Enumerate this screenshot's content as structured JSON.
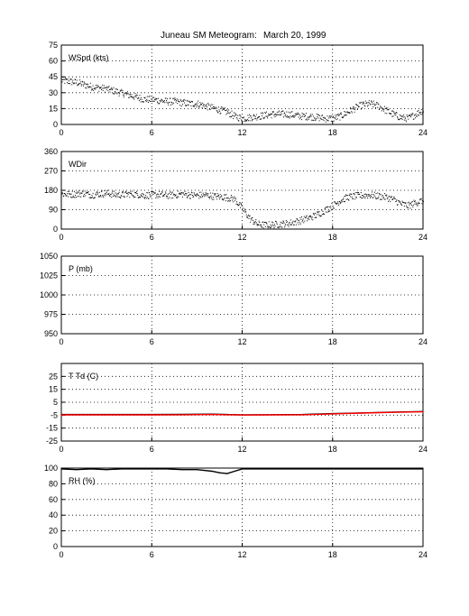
{
  "figure": {
    "title": "Juneau SM Meteogram:",
    "date": "March 20, 1999"
  },
  "chart_data": [
    {
      "type": "scatter",
      "label": "WSpd (kts)",
      "xlim": [
        0,
        24
      ],
      "ylim": [
        0,
        75
      ],
      "xticks": [
        0,
        6,
        12,
        18,
        24
      ],
      "yticks": [
        0,
        15,
        30,
        45,
        60,
        75
      ],
      "grid": true,
      "series": [
        {
          "color": "#000000",
          "x": [
            0,
            0.5,
            1,
            1.5,
            2,
            2.5,
            3,
            3.5,
            4,
            4.5,
            5,
            5.5,
            6,
            6.5,
            7,
            7.5,
            8,
            8.5,
            9,
            9.5,
            10,
            10.5,
            11,
            11.5,
            12,
            12.5,
            13,
            13.5,
            14,
            14.5,
            15,
            15.5,
            16,
            16.5,
            17,
            17.5,
            18,
            18.5,
            19,
            19.5,
            20,
            20.5,
            21,
            21.5,
            22,
            22.5,
            23,
            23.5,
            24
          ],
          "y": [
            42,
            41,
            40,
            38,
            36,
            35,
            34,
            32,
            30,
            28,
            26,
            24,
            24,
            23,
            22,
            22,
            21,
            20,
            20,
            18,
            16,
            14,
            12,
            8,
            6,
            7,
            8,
            9,
            10,
            10,
            10,
            9,
            8,
            8,
            7,
            6,
            6,
            8,
            12,
            16,
            19,
            20,
            18,
            14,
            10,
            7,
            6,
            10,
            14
          ]
        }
      ]
    },
    {
      "type": "scatter",
      "label": "WDir",
      "xlim": [
        0,
        24
      ],
      "ylim": [
        0,
        360
      ],
      "xticks": [
        0,
        6,
        12,
        18,
        24
      ],
      "yticks": [
        0,
        90,
        180,
        270,
        360
      ],
      "grid": true,
      "series": [
        {
          "color": "#000000",
          "x": [
            0,
            0.5,
            1,
            1.5,
            2,
            2.5,
            3,
            3.5,
            4,
            4.5,
            5,
            5.5,
            6,
            6.5,
            7,
            7.5,
            8,
            8.5,
            9,
            9.5,
            10,
            10.5,
            11,
            11.5,
            12,
            12.5,
            13,
            13.5,
            14,
            14.5,
            15,
            15.5,
            16,
            16.5,
            17,
            17.5,
            18,
            18.5,
            19,
            19.5,
            20,
            20.5,
            21,
            21.5,
            22,
            22.5,
            23,
            23.5,
            24
          ],
          "y": [
            165,
            163,
            165,
            168,
            160,
            165,
            168,
            162,
            160,
            165,
            163,
            158,
            160,
            162,
            158,
            160,
            165,
            160,
            158,
            160,
            155,
            152,
            148,
            140,
            95,
            50,
            25,
            20,
            22,
            25,
            28,
            35,
            45,
            55,
            70,
            90,
            110,
            135,
            150,
            155,
            158,
            160,
            155,
            150,
            140,
            120,
            110,
            125,
            135
          ]
        }
      ]
    },
    {
      "type": "scatter",
      "label": "P (mb)",
      "xlim": [
        0,
        24
      ],
      "ylim": [
        950,
        1050
      ],
      "xticks": [
        0,
        6,
        12,
        18,
        24
      ],
      "yticks": [
        950,
        975,
        1000,
        1025,
        1050
      ],
      "grid": true,
      "series": []
    },
    {
      "type": "line",
      "label": "T Td (C)",
      "xlim": [
        0,
        24
      ],
      "ylim": [
        -25,
        35
      ],
      "xticks": [
        0,
        6,
        12,
        18,
        24
      ],
      "yticks": [
        -25,
        -15,
        -5,
        5,
        15,
        25
      ],
      "grid": true,
      "series": [
        {
          "color": "#000000",
          "x": [
            0,
            2,
            4,
            6,
            8,
            10,
            11,
            12,
            14,
            16,
            18,
            20,
            22,
            24
          ],
          "y": [
            -4.5,
            -4.5,
            -4.5,
            -4.5,
            -4.4,
            -4.2,
            -4.5,
            -4.7,
            -4.6,
            -4.5,
            -3.8,
            -3.2,
            -2.6,
            -2.2
          ]
        },
        {
          "color": "#ff0000",
          "x": [
            0,
            2,
            4,
            6,
            8,
            10,
            11,
            12,
            14,
            16,
            18,
            20,
            22,
            24
          ],
          "y": [
            -4.8,
            -4.8,
            -4.8,
            -4.8,
            -4.7,
            -4.5,
            -4.7,
            -4.9,
            -4.8,
            -4.7,
            -4.0,
            -3.4,
            -2.8,
            -2.4
          ]
        }
      ]
    },
    {
      "type": "line",
      "label": "RH (%)",
      "xlim": [
        0,
        24
      ],
      "ylim": [
        0,
        100
      ],
      "xticks": [
        0,
        6,
        12,
        18,
        24
      ],
      "yticks": [
        0,
        20,
        40,
        60,
        80,
        100
      ],
      "grid": true,
      "series": [
        {
          "color": "#000000",
          "x": [
            0,
            1,
            2,
            3,
            4,
            5,
            6,
            7,
            8,
            9,
            9.5,
            10,
            10.5,
            11,
            11.5,
            12,
            13,
            14,
            15,
            16,
            17,
            18,
            19,
            20,
            21,
            22,
            23,
            24
          ],
          "y": [
            99,
            98,
            99,
            98,
            99,
            99,
            99,
            99,
            98,
            98,
            97,
            96,
            94,
            93,
            96,
            99,
            99,
            99,
            99,
            99,
            99,
            99,
            99,
            99,
            99,
            99,
            99,
            99
          ]
        }
      ]
    }
  ]
}
